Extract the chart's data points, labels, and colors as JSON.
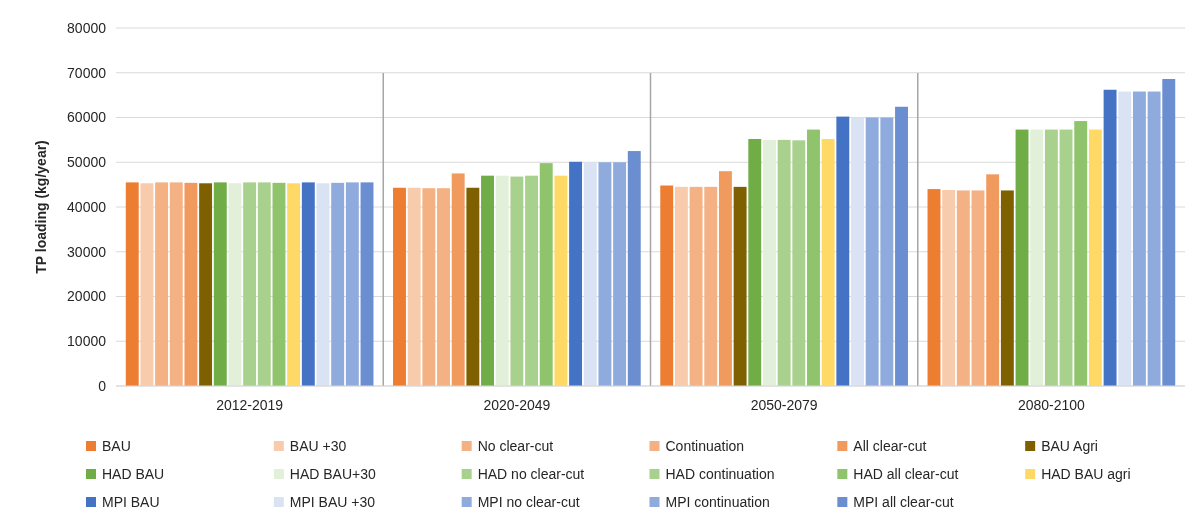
{
  "chart_data": {
    "type": "bar",
    "ylabel": "TP loading (kg/year)",
    "categories": [
      "2012-2019",
      "2020-2049",
      "2050-2079",
      "2080-2100"
    ],
    "ylim": [
      0,
      80000
    ],
    "yticks": [
      0,
      10000,
      20000,
      30000,
      40000,
      50000,
      60000,
      70000,
      80000
    ],
    "grid": "y",
    "legend": "bottom",
    "series": [
      {
        "name": "BAU",
        "color": "#ed7d31",
        "values": [
          45500,
          44300,
          44800,
          44000
        ]
      },
      {
        "name": "BAU +30",
        "color": "#f8cbad",
        "values": [
          45300,
          44300,
          44500,
          43800
        ]
      },
      {
        "name": "No clear-cut",
        "color": "#f4b183",
        "values": [
          45500,
          44200,
          44500,
          43700
        ]
      },
      {
        "name": "Continuation",
        "color": "#f4b183",
        "values": [
          45500,
          44200,
          44500,
          43700
        ]
      },
      {
        "name": "All clear-cut",
        "color": "#f19a5e",
        "values": [
          45400,
          47500,
          48000,
          47300
        ]
      },
      {
        "name": "BAU Agri",
        "color": "#7f6000",
        "values": [
          45300,
          44300,
          44500,
          43700
        ]
      },
      {
        "name": "HAD BAU",
        "color": "#70ad47",
        "values": [
          45500,
          47000,
          55200,
          57300
        ]
      },
      {
        "name": "HAD BAU+30",
        "color": "#e2efd9",
        "values": [
          45300,
          47000,
          55000,
          57300
        ]
      },
      {
        "name": "HAD no clear-cut",
        "color": "#a9d18e",
        "values": [
          45500,
          46800,
          55000,
          57300
        ]
      },
      {
        "name": "HAD continuation",
        "color": "#a9d18e",
        "values": [
          45500,
          47000,
          54900,
          57300
        ]
      },
      {
        "name": "HAD all clear-cut",
        "color": "#8fc46c",
        "values": [
          45400,
          49800,
          57300,
          59200
        ]
      },
      {
        "name": "HAD BAU agri",
        "color": "#ffd966",
        "values": [
          45300,
          47000,
          55200,
          57300
        ]
      },
      {
        "name": "MPI BAU",
        "color": "#4472c4",
        "values": [
          45500,
          50100,
          60200,
          66200
        ]
      },
      {
        "name": "MPI BAU +30",
        "color": "#dae3f3",
        "values": [
          45300,
          50000,
          60000,
          65800
        ]
      },
      {
        "name": "MPI no clear-cut",
        "color": "#8faadc",
        "values": [
          45400,
          50000,
          60000,
          65800
        ]
      },
      {
        "name": "MPI continuation",
        "color": "#8faadc",
        "values": [
          45500,
          50000,
          60000,
          65800
        ]
      },
      {
        "name": "MPI all clear-cut",
        "color": "#6a8ed0",
        "values": [
          45500,
          52500,
          62400,
          68600
        ]
      }
    ]
  }
}
